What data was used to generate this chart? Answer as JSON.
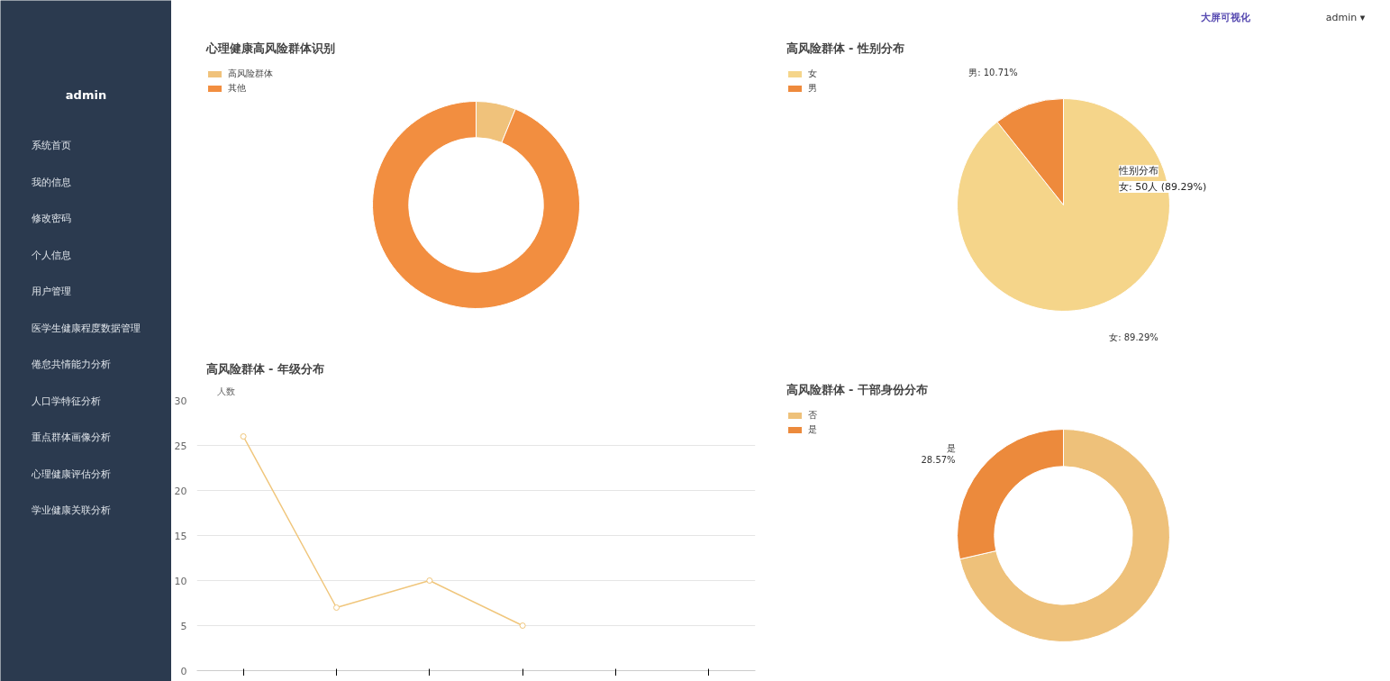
{
  "chart_data": [
    {
      "type": "other",
      "annotations": [
        "admin",
        "系统首页",
        "我的信息",
        "修改密码",
        "个人信息",
        "用户管理",
        "医学生健康程度数据管理",
        "倦怠共情能力分析",
        "人口学特征分析",
        "重点群体画像分析",
        "心理健康评估分析",
        "学业健康关联分析"
      ]
    },
    {
      "type": "other",
      "annotations": [
        "大屏可视化",
        "admin ▾"
      ]
    },
    {
      "type": "donut",
      "title": "心理健康高风险群体识别",
      "categories": [
        "高风险群体",
        "其他"
      ],
      "values": [
        6.2,
        93.8
      ],
      "colors": [
        "#f0c27b",
        "#f28e40"
      ],
      "legend": "top left"
    },
    {
      "type": "pie",
      "title": "高风险群体 - 性别分布",
      "categories": [
        "女",
        "男"
      ],
      "values": [
        89.29,
        10.71
      ],
      "colors": [
        "#f5d58a",
        "#ee8a3c"
      ],
      "value_labels": [
        "女: 89.29%",
        "男: 10.71%"
      ],
      "legend": "top left",
      "annotations": [
        "性别分布",
        "女: 50人 (89.29%)"
      ]
    },
    {
      "type": "line",
      "title": "高风险群体 - 年级分布",
      "ylabel": "人数",
      "categories": [
        null,
        null,
        null,
        null,
        null,
        null
      ],
      "series": [
        {
          "color": "#f0c67c",
          "values": [
            26,
            7,
            10,
            5,
            null,
            null
          ]
        }
      ],
      "ylim": [
        0,
        30
      ],
      "yticks": [
        0,
        5,
        10,
        15,
        20,
        25,
        30
      ],
      "grid": "y",
      "marker": "circle"
    },
    {
      "type": "donut",
      "title": "高风险群体 - 干部身份分布",
      "categories": [
        "否",
        "是"
      ],
      "values": [
        71.43,
        28.57
      ],
      "colors": [
        "#eec17a",
        "#ec8a3c"
      ],
      "value_labels": [
        null,
        "是\n28.57%"
      ],
      "legend": "top left"
    }
  ]
}
